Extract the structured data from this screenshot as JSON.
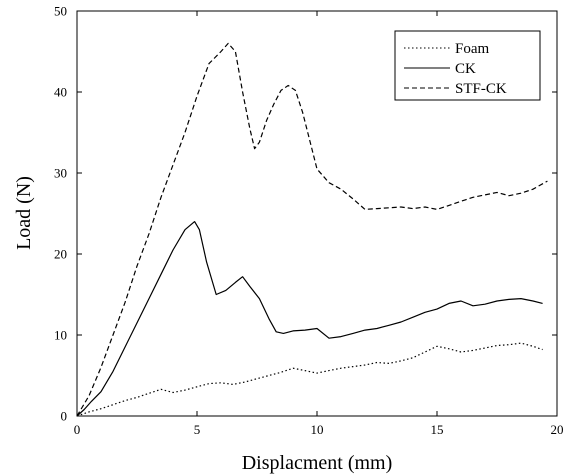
{
  "chart_data": {
    "type": "line",
    "title": "",
    "xlabel": "Displacment (mm)",
    "ylabel": "Load (N)",
    "xlim": [
      0,
      20
    ],
    "ylim": [
      0,
      50
    ],
    "xticks": [
      0,
      5,
      10,
      15,
      20
    ],
    "yticks": [
      0,
      10,
      20,
      30,
      40,
      50
    ],
    "grid": false,
    "legend_position": "top-right",
    "series": [
      {
        "name": "Foam",
        "style": "dotted",
        "color": "#000000",
        "x": [
          0,
          0.5,
          1,
          1.5,
          2,
          2.5,
          3,
          3.5,
          4,
          4.5,
          5,
          5.5,
          6,
          6.5,
          7,
          7.5,
          8,
          8.5,
          9,
          9.5,
          10,
          10.5,
          11,
          11.5,
          12,
          12.5,
          13,
          13.5,
          14,
          14.5,
          15,
          15.5,
          16,
          16.5,
          17,
          17.5,
          18,
          18.5,
          19,
          19.4
        ],
        "y": [
          0,
          0.5,
          0.9,
          1.4,
          1.9,
          2.3,
          2.8,
          3.3,
          2.9,
          3.2,
          3.6,
          4.0,
          4.1,
          3.9,
          4.2,
          4.6,
          5.0,
          5.4,
          5.9,
          5.6,
          5.3,
          5.6,
          5.9,
          6.1,
          6.3,
          6.6,
          6.5,
          6.8,
          7.2,
          7.9,
          8.6,
          8.3,
          7.9,
          8.1,
          8.4,
          8.7,
          8.8,
          9.0,
          8.6,
          8.2
        ]
      },
      {
        "name": "CK",
        "style": "solid",
        "color": "#000000",
        "x": [
          0,
          0.3,
          0.6,
          1,
          1.5,
          2,
          2.5,
          3,
          3.5,
          4,
          4.5,
          4.9,
          5.1,
          5.4,
          5.8,
          6.2,
          6.6,
          6.9,
          7.2,
          7.6,
          8.0,
          8.3,
          8.6,
          9,
          9.5,
          10,
          10.5,
          11,
          11.5,
          12,
          12.5,
          13,
          13.5,
          14,
          14.5,
          15,
          15.5,
          16,
          16.5,
          17,
          17.5,
          18,
          18.5,
          19,
          19.4
        ],
        "y": [
          0,
          0.8,
          1.8,
          3.0,
          5.5,
          8.5,
          11.5,
          14.5,
          17.5,
          20.5,
          23.0,
          24.0,
          23.0,
          19.0,
          15.0,
          15.5,
          16.5,
          17.2,
          16.0,
          14.5,
          12.0,
          10.4,
          10.2,
          10.5,
          10.6,
          10.8,
          9.6,
          9.8,
          10.2,
          10.6,
          10.8,
          11.2,
          11.6,
          12.2,
          12.8,
          13.2,
          13.9,
          14.2,
          13.6,
          13.8,
          14.2,
          14.4,
          14.5,
          14.2,
          13.9
        ]
      },
      {
        "name": "STF-CK",
        "style": "dashed",
        "color": "#000000",
        "x": [
          0,
          0.5,
          1,
          1.5,
          2,
          2.5,
          3,
          3.5,
          4,
          4.5,
          5,
          5.5,
          6,
          6.3,
          6.6,
          6.9,
          7.2,
          7.4,
          7.6,
          7.9,
          8.2,
          8.5,
          8.8,
          9.1,
          9.4,
          9.7,
          10,
          10.5,
          11,
          11.5,
          12,
          12.5,
          13,
          13.5,
          14,
          14.5,
          15,
          15.5,
          16,
          16.5,
          17,
          17.5,
          18,
          18.5,
          19,
          19.6
        ],
        "y": [
          0,
          2.5,
          6.0,
          10.0,
          14.0,
          18.5,
          22.5,
          27.0,
          31.0,
          35.0,
          39.5,
          43.5,
          45.0,
          46.0,
          45.0,
          40.0,
          35.5,
          33.0,
          33.8,
          36.5,
          38.5,
          40.2,
          40.8,
          40.2,
          37.5,
          34.0,
          30.5,
          28.8,
          28.0,
          26.8,
          25.5,
          25.6,
          25.7,
          25.8,
          25.6,
          25.8,
          25.5,
          26.0,
          26.5,
          27.0,
          27.3,
          27.6,
          27.2,
          27.5,
          28.0,
          29.0
        ]
      }
    ]
  }
}
